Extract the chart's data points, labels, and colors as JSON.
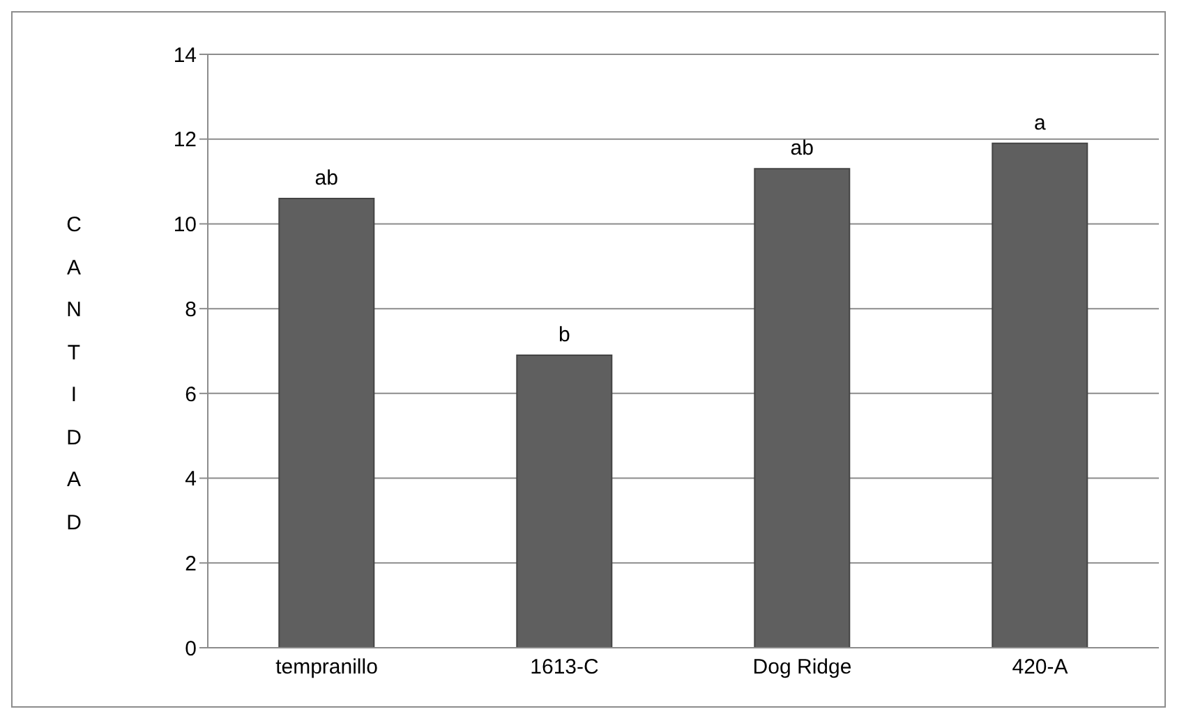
{
  "chart_data": {
    "type": "bar",
    "ylabel": "CANTIDAD",
    "categories": [
      "tempranillo",
      "1613-C",
      "Dog Ridge",
      "420-A"
    ],
    "values": [
      10.6,
      6.9,
      11.3,
      11.9
    ],
    "color": "#5f5f5f",
    "value_labels": [
      "ab",
      "b",
      "ab",
      "a"
    ],
    "ylim": [
      0,
      14
    ],
    "yticks": [
      0,
      2,
      4,
      6,
      8,
      10,
      12,
      14
    ],
    "grid": "y"
  }
}
